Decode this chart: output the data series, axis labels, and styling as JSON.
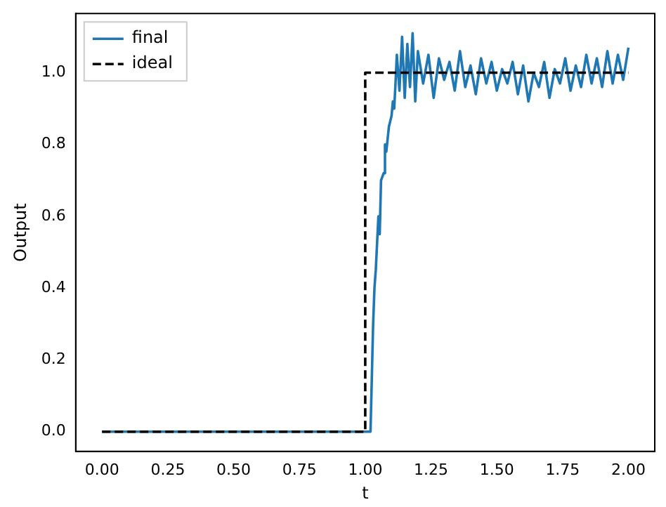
{
  "chart_data": {
    "type": "line",
    "xlabel": "t",
    "ylabel": "Output",
    "xlim": [
      -0.1,
      2.1
    ],
    "xticks": [
      {
        "value": 0,
        "label": "0.00"
      },
      0.25,
      {
        "value": 0.5,
        "label": "0.50"
      },
      0.75,
      {
        "value": 1,
        "label": "1.00"
      },
      1.25,
      {
        "value": 1.5,
        "label": "1.50"
      },
      1.75,
      {
        "value": 2,
        "label": "2.00"
      }
    ],
    "ylim": [
      -0.055,
      1.165
    ],
    "yticks": [
      {
        "value": 0,
        "label": "0.0"
      },
      0.2,
      0.4,
      0.6,
      0.8,
      {
        "value": 1,
        "label": "1.0"
      }
    ],
    "grid": false,
    "legend": "top left",
    "marker": "none",
    "series": [
      {
        "name": "final",
        "color": "#1f77b4",
        "line_style": "solid",
        "x": [
          0,
          1.02,
          1.03,
          1.035,
          1.04,
          1.05,
          1.055,
          1.06,
          1.07,
          1.075,
          1.08,
          1.09,
          1.1,
          1.105,
          1.11,
          1.115,
          1.12,
          1.13,
          1.14,
          1.15,
          1.16,
          1.17,
          1.18,
          1.19,
          1.2,
          1.22,
          1.24,
          1.26,
          1.28,
          1.3,
          1.32,
          1.34,
          1.36,
          1.38,
          1.4,
          1.42,
          1.44,
          1.46,
          1.48,
          1.5,
          1.52,
          1.54,
          1.56,
          1.58,
          1.6,
          1.62,
          1.64,
          1.66,
          1.68,
          1.7,
          1.72,
          1.74,
          1.76,
          1.78,
          1.8,
          1.82,
          1.84,
          1.86,
          1.88,
          1.9,
          1.92,
          1.94,
          1.96,
          1.98,
          2.0
        ],
        "values": [
          0,
          0,
          0.3,
          0.4,
          0.45,
          0.6,
          0.55,
          0.7,
          0.72,
          0.8,
          0.78,
          0.85,
          0.88,
          0.92,
          0.9,
          0.97,
          1.05,
          0.95,
          1.1,
          0.93,
          1.08,
          0.96,
          1.11,
          0.92,
          1.06,
          0.97,
          1.05,
          0.93,
          1.04,
          0.98,
          1.03,
          0.95,
          1.06,
          0.96,
          1.02,
          0.94,
          1.04,
          0.97,
          1.03,
          0.95,
          1.01,
          0.97,
          1.03,
          0.94,
          1.02,
          0.92,
          1.0,
          0.96,
          1.03,
          0.93,
          1.01,
          0.97,
          1.04,
          0.95,
          1.02,
          0.96,
          1.05,
          0.97,
          1.04,
          0.96,
          1.06,
          0.97,
          1.05,
          0.98,
          1.07
        ]
      },
      {
        "name": "ideal",
        "color": "#000000",
        "line_style": "dashed",
        "x": [
          0,
          1,
          1,
          2
        ],
        "values": [
          0,
          0,
          1,
          1
        ]
      }
    ]
  }
}
